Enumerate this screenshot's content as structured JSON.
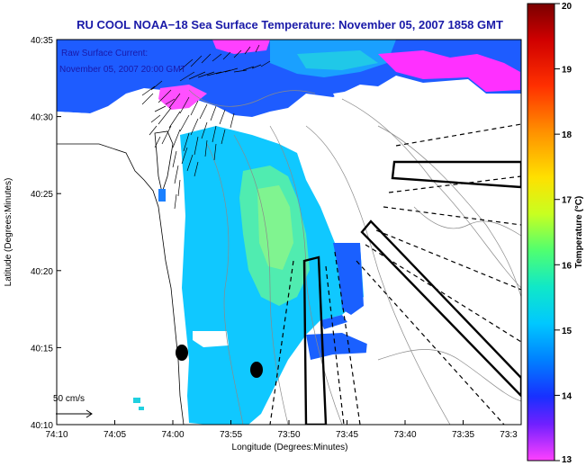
{
  "title": "RU COOL  NOAA−18  Sea Surface Temperature:  November 05, 2007 1858 GMT",
  "overlay": {
    "line1": "Raw Surface Current:",
    "line2": "November 05, 2007 20:00 GMT"
  },
  "scale_label": "50 cm/s",
  "axes": {
    "xlabel": "Longitude (Degrees:Minutes)",
    "ylabel": "Latitude (Degrees:Minutes)",
    "xticks": [
      "74:10",
      "74:05",
      "74:00",
      "73:55",
      "73:50",
      "73:45",
      "73:40",
      "73:35",
      "73:3"
    ],
    "yticks": [
      "40:35",
      "40:30",
      "40:25",
      "40:20",
      "40:15",
      "40:10"
    ]
  },
  "colorbar": {
    "label": "Temperature (°C)",
    "ticks": [
      "20",
      "19",
      "18",
      "17",
      "16",
      "15",
      "14",
      "13"
    ],
    "range": [
      13,
      20
    ],
    "colors": [
      "#8b0000",
      "#ff0000",
      "#ff8800",
      "#ffd000",
      "#c8ff00",
      "#40ff80",
      "#00d8d8",
      "#00a0ff",
      "#0040ff",
      "#4020ff",
      "#ff40ff"
    ]
  },
  "colors": {
    "title": "#1a1aa8",
    "land": "#ffffff",
    "cloud": "#ffffff"
  }
}
